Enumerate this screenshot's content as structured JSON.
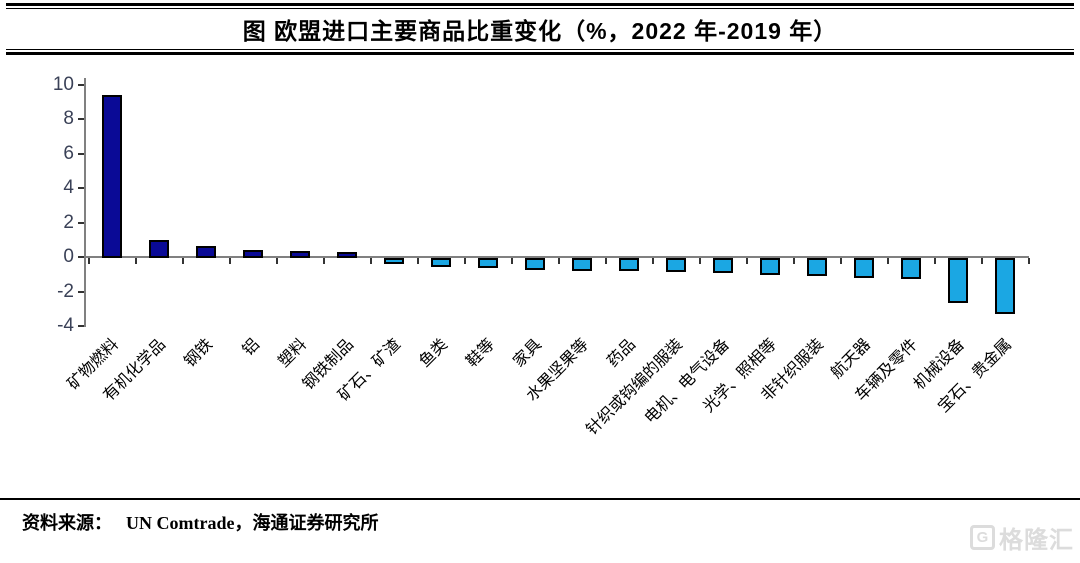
{
  "header": {
    "title": "图 欧盟进口主要商品比重变化（%，2022 年-2019 年）"
  },
  "chart_data": {
    "type": "bar",
    "title": "图 欧盟进口主要商品比重变化（%，2022 年-2019 年）",
    "categories": [
      "矿物燃料",
      "有机化学品",
      "钢铁",
      "铝",
      "塑料",
      "钢铁制品",
      "矿石、矿渣",
      "鱼类",
      "鞋等",
      "家具",
      "水果坚果等",
      "药品",
      "针织或钩编的服装",
      "电机、电气设备",
      "光学、照相等",
      "非针织服装",
      "航天器",
      "车辆及零件",
      "机械设备",
      "宝石、贵金属"
    ],
    "values": [
      9.2,
      0.8,
      0.45,
      0.25,
      0.15,
      0.1,
      -0.1,
      -0.3,
      -0.35,
      -0.45,
      -0.5,
      -0.55,
      -0.6,
      -0.65,
      -0.75,
      -0.8,
      -0.9,
      -1.0,
      -2.4,
      -3.0
    ],
    "unit": "%",
    "ylim": [
      -4,
      10
    ],
    "ytick_interval": 2,
    "yticks": [
      10,
      8,
      6,
      4,
      2,
      0,
      -2,
      -4
    ],
    "grid": false,
    "legend": "none",
    "positive_color": "#0a0a96",
    "negative_color": "#1ba7e3",
    "bar_border_color": "#000000",
    "xlabel_rotation_deg": 45
  },
  "footer": {
    "source_label": "资料来源：",
    "source_text": "UN Comtrade，海通证券研究所"
  },
  "watermark": {
    "logo_letter": "G",
    "text": "格隆汇"
  }
}
